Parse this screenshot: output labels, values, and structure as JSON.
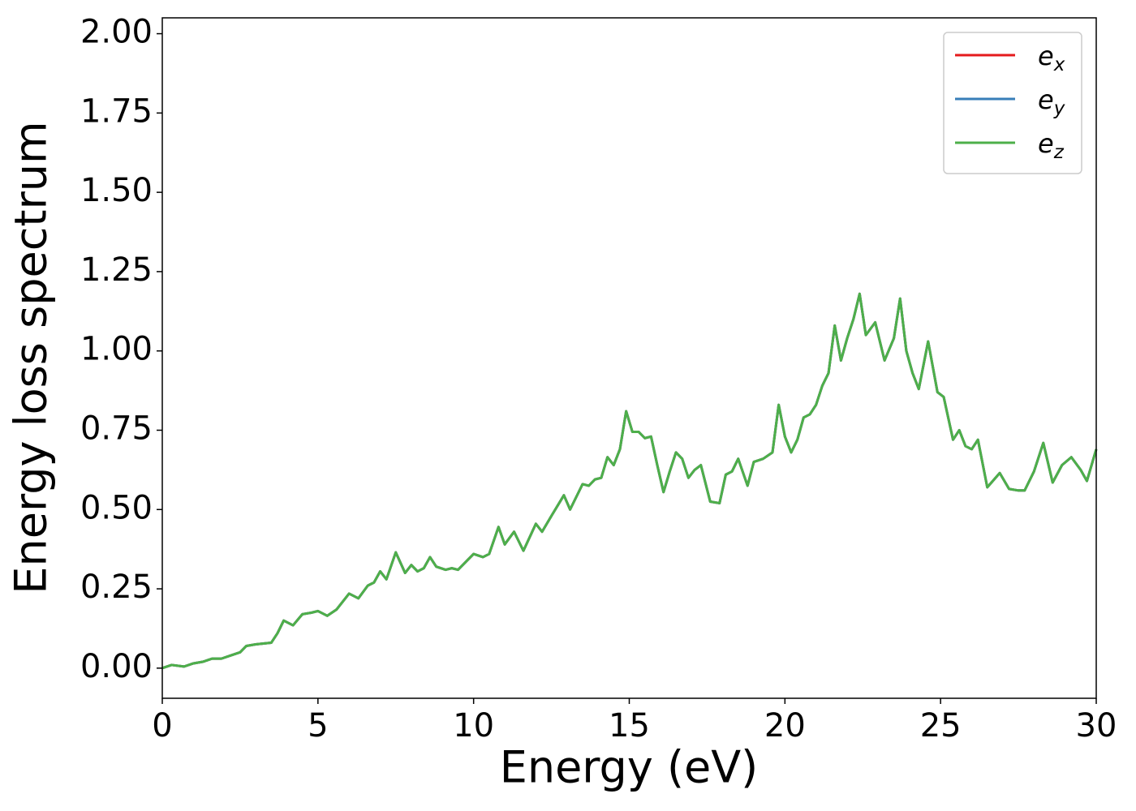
{
  "chart_data": {
    "type": "line",
    "xlabel": "Energy (eV)",
    "ylabel": "Energy loss spectrum",
    "xlim": [
      0,
      30
    ],
    "ylim": [
      -0.095,
      2.05
    ],
    "xticks": [
      0,
      5,
      10,
      15,
      20,
      25,
      30
    ],
    "yticks": [
      {
        "value": 0,
        "label": "0.00"
      },
      {
        "value": 0.25,
        "label": "0.25"
      },
      {
        "value": 0.5,
        "label": "0.50"
      },
      {
        "value": 0.75,
        "label": "0.75"
      },
      {
        "value": 1,
        "label": "1.00"
      },
      {
        "value": 1.25,
        "label": "1.25"
      },
      {
        "value": 1.5,
        "label": "1.50"
      },
      {
        "value": 1.75,
        "label": "1.75"
      },
      {
        "value": 2,
        "label": "2.00"
      }
    ],
    "legend": "upper right",
    "x": [
      0,
      0.3,
      0.7,
      1.0,
      1.3,
      1.6,
      1.9,
      2.2,
      2.5,
      2.7,
      3.0,
      3.5,
      3.7,
      3.9,
      4.2,
      4.5,
      4.8,
      5.0,
      5.3,
      5.6,
      6.0,
      6.3,
      6.6,
      6.8,
      7.0,
      7.2,
      7.5,
      7.8,
      8.0,
      8.2,
      8.4,
      8.6,
      8.8,
      9.1,
      9.3,
      9.5,
      9.8,
      10.0,
      10.3,
      10.5,
      10.8,
      11.0,
      11.3,
      11.6,
      12.0,
      12.2,
      12.5,
      12.9,
      13.1,
      13.5,
      13.7,
      13.9,
      14.1,
      14.3,
      14.5,
      14.7,
      14.9,
      15.1,
      15.3,
      15.5,
      15.7,
      15.9,
      16.1,
      16.3,
      16.5,
      16.7,
      16.9,
      17.1,
      17.3,
      17.6,
      17.9,
      18.1,
      18.3,
      18.5,
      18.8,
      19.0,
      19.3,
      19.6,
      19.8,
      20.0,
      20.2,
      20.4,
      20.6,
      20.8,
      21.0,
      21.2,
      21.4,
      21.6,
      21.8,
      22.0,
      22.2,
      22.4,
      22.6,
      22.9,
      23.2,
      23.5,
      23.7,
      23.9,
      24.1,
      24.3,
      24.6,
      24.9,
      25.1,
      25.4,
      25.6,
      25.8,
      26.0,
      26.2,
      26.5,
      26.9,
      27.2,
      27.5,
      27.7,
      28.0,
      28.3,
      28.6,
      28.9,
      29.2,
      29.5,
      29.7,
      30.0
    ],
    "series": [
      {
        "name": "ex",
        "color": "#e41a1c",
        "values": [
          0.0,
          0.01,
          0.005,
          0.015,
          0.02,
          0.03,
          0.03,
          0.04,
          0.05,
          0.07,
          0.075,
          0.08,
          0.11,
          0.15,
          0.135,
          0.17,
          0.175,
          0.18,
          0.165,
          0.185,
          0.235,
          0.22,
          0.26,
          0.27,
          0.305,
          0.28,
          0.365,
          0.3,
          0.325,
          0.305,
          0.315,
          0.35,
          0.32,
          0.31,
          0.315,
          0.31,
          0.34,
          0.36,
          0.35,
          0.36,
          0.445,
          0.39,
          0.43,
          0.37,
          0.455,
          0.43,
          0.48,
          0.545,
          0.5,
          0.58,
          0.575,
          0.595,
          0.6,
          0.665,
          0.64,
          0.69,
          0.81,
          0.745,
          0.745,
          0.725,
          0.73,
          0.64,
          0.555,
          0.62,
          0.68,
          0.66,
          0.6,
          0.625,
          0.64,
          0.525,
          0.52,
          0.61,
          0.62,
          0.66,
          0.575,
          0.65,
          0.66,
          0.68,
          0.83,
          0.73,
          0.68,
          0.72,
          0.79,
          0.8,
          0.83,
          0.89,
          0.93,
          1.08,
          0.97,
          1.04,
          1.1,
          1.18,
          1.05,
          1.09,
          0.97,
          1.04,
          1.165,
          1.0,
          0.93,
          0.88,
          1.03,
          0.87,
          0.855,
          0.72,
          0.75,
          0.7,
          0.69,
          0.72,
          0.57,
          0.615,
          0.565,
          0.56,
          0.56,
          0.62,
          0.71,
          0.585,
          0.64,
          0.665,
          0.625,
          0.59,
          0.69
        ]
      },
      {
        "name": "ey",
        "color": "#377eb8",
        "values": [
          0.0,
          0.01,
          0.005,
          0.015,
          0.02,
          0.03,
          0.03,
          0.04,
          0.05,
          0.07,
          0.075,
          0.08,
          0.11,
          0.15,
          0.135,
          0.17,
          0.175,
          0.18,
          0.165,
          0.185,
          0.235,
          0.22,
          0.26,
          0.27,
          0.305,
          0.28,
          0.365,
          0.3,
          0.325,
          0.305,
          0.315,
          0.35,
          0.32,
          0.31,
          0.315,
          0.31,
          0.34,
          0.36,
          0.35,
          0.36,
          0.445,
          0.39,
          0.43,
          0.37,
          0.455,
          0.43,
          0.48,
          0.545,
          0.5,
          0.58,
          0.575,
          0.595,
          0.6,
          0.665,
          0.64,
          0.69,
          0.81,
          0.745,
          0.745,
          0.725,
          0.73,
          0.64,
          0.555,
          0.62,
          0.68,
          0.66,
          0.6,
          0.625,
          0.64,
          0.525,
          0.52,
          0.61,
          0.62,
          0.66,
          0.575,
          0.65,
          0.66,
          0.68,
          0.83,
          0.73,
          0.68,
          0.72,
          0.79,
          0.8,
          0.83,
          0.89,
          0.93,
          1.08,
          0.97,
          1.04,
          1.1,
          1.18,
          1.05,
          1.09,
          0.97,
          1.04,
          1.165,
          1.0,
          0.93,
          0.88,
          1.03,
          0.87,
          0.855,
          0.72,
          0.75,
          0.7,
          0.69,
          0.72,
          0.57,
          0.615,
          0.565,
          0.56,
          0.56,
          0.62,
          0.71,
          0.585,
          0.64,
          0.665,
          0.625,
          0.59,
          0.69
        ]
      },
      {
        "name": "ez",
        "color": "#4daf4a",
        "values": [
          0.0,
          0.01,
          0.005,
          0.015,
          0.02,
          0.03,
          0.03,
          0.04,
          0.05,
          0.07,
          0.075,
          0.08,
          0.11,
          0.15,
          0.135,
          0.17,
          0.175,
          0.18,
          0.165,
          0.185,
          0.235,
          0.22,
          0.26,
          0.27,
          0.305,
          0.28,
          0.365,
          0.3,
          0.325,
          0.305,
          0.315,
          0.35,
          0.32,
          0.31,
          0.315,
          0.31,
          0.34,
          0.36,
          0.35,
          0.36,
          0.445,
          0.39,
          0.43,
          0.37,
          0.455,
          0.43,
          0.48,
          0.545,
          0.5,
          0.58,
          0.575,
          0.595,
          0.6,
          0.665,
          0.64,
          0.69,
          0.81,
          0.745,
          0.745,
          0.725,
          0.73,
          0.64,
          0.555,
          0.62,
          0.68,
          0.66,
          0.6,
          0.625,
          0.64,
          0.525,
          0.52,
          0.61,
          0.62,
          0.66,
          0.575,
          0.65,
          0.66,
          0.68,
          0.83,
          0.73,
          0.68,
          0.72,
          0.79,
          0.8,
          0.83,
          0.89,
          0.93,
          1.08,
          0.97,
          1.04,
          1.1,
          1.18,
          1.05,
          1.09,
          0.97,
          1.04,
          1.165,
          1.0,
          0.93,
          0.88,
          1.03,
          0.87,
          0.855,
          0.72,
          0.75,
          0.7,
          0.69,
          0.72,
          0.57,
          0.615,
          0.565,
          0.56,
          0.56,
          0.62,
          0.71,
          0.585,
          0.64,
          0.665,
          0.625,
          0.59,
          0.69
        ]
      }
    ]
  }
}
